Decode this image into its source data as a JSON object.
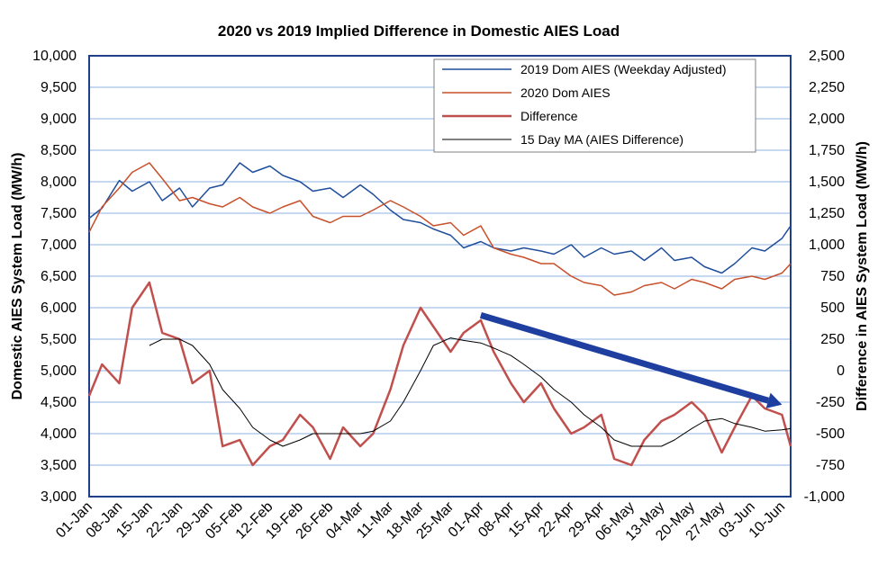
{
  "chart_data": {
    "type": "line",
    "title": "2020 vs 2019 Implied Difference in Domestic AIES Load",
    "ylabel": "Domestic AIES System Load (MW/h)",
    "y2label": "Difference in AIES System Load (MW/h)",
    "ylim": [
      3000,
      10000
    ],
    "y2lim": [
      -1000,
      2500
    ],
    "yticks": [
      "3,000",
      "3,500",
      "4,000",
      "4,500",
      "5,000",
      "5,500",
      "6,000",
      "6,500",
      "7,000",
      "7,500",
      "8,000",
      "8,500",
      "9,000",
      "9,500",
      "10,000"
    ],
    "y2ticks": [
      "-1,000",
      "-750",
      "-500",
      "-250",
      "0",
      "250",
      "500",
      "750",
      "1,000",
      "1,250",
      "1,500",
      "1,750",
      "2,000",
      "2,250",
      "2,500"
    ],
    "categories": [
      "01-Jan",
      "08-Jan",
      "15-Jan",
      "22-Jan",
      "29-Jan",
      "05-Feb",
      "12-Feb",
      "19-Feb",
      "26-Feb",
      "04-Mar",
      "11-Mar",
      "18-Mar",
      "25-Mar",
      "01-Apr",
      "08-Apr",
      "15-Apr",
      "22-Apr",
      "29-Apr",
      "06-May",
      "13-May",
      "20-May",
      "27-May",
      "03-Jun",
      "10-Jun"
    ],
    "grid": true,
    "legend_position": "top-right",
    "colors": {
      "dom2019": "#1f4e9c",
      "dom2020": "#c8502a",
      "difference": "#c0504d",
      "ma": "#000000",
      "arrow": "#1f3fa0",
      "grid": "#8db3e2",
      "frame": "#1f3f8a"
    },
    "series": [
      {
        "name": "2019 Dom AIES (Weekday Adjusted)",
        "axis": "left",
        "x": [
          "01-Jan",
          "04-Jan",
          "08-Jan",
          "11-Jan",
          "15-Jan",
          "18-Jan",
          "22-Jan",
          "25-Jan",
          "29-Jan",
          "01-Feb",
          "05-Feb",
          "08-Feb",
          "12-Feb",
          "15-Feb",
          "19-Feb",
          "22-Feb",
          "26-Feb",
          "29-Feb",
          "04-Mar",
          "07-Mar",
          "11-Mar",
          "14-Mar",
          "18-Mar",
          "21-Mar",
          "25-Mar",
          "28-Mar",
          "01-Apr",
          "04-Apr",
          "08-Apr",
          "11-Apr",
          "15-Apr",
          "18-Apr",
          "22-Apr",
          "25-Apr",
          "29-Apr",
          "02-May",
          "06-May",
          "09-May",
          "13-May",
          "16-May",
          "20-May",
          "23-May",
          "27-May",
          "30-May",
          "03-Jun",
          "06-Jun",
          "10-Jun",
          "12-Jun"
        ],
        "values": [
          7420,
          7580,
          8020,
          7850,
          8000,
          7700,
          7900,
          7600,
          7900,
          7950,
          8300,
          8150,
          8250,
          8100,
          8000,
          7850,
          7900,
          7750,
          7950,
          7800,
          7550,
          7400,
          7350,
          7250,
          7150,
          6950,
          7050,
          6950,
          6900,
          6950,
          6900,
          6850,
          7000,
          6800,
          6950,
          6850,
          6900,
          6750,
          6950,
          6750,
          6800,
          6650,
          6550,
          6700,
          6950,
          6900,
          7100,
          7300
        ]
      },
      {
        "name": "2020 Dom AIES",
        "axis": "left",
        "x": [
          "01-Jan",
          "04-Jan",
          "08-Jan",
          "11-Jan",
          "15-Jan",
          "18-Jan",
          "22-Jan",
          "25-Jan",
          "29-Jan",
          "01-Feb",
          "05-Feb",
          "08-Feb",
          "12-Feb",
          "15-Feb",
          "19-Feb",
          "22-Feb",
          "26-Feb",
          "29-Feb",
          "04-Mar",
          "07-Mar",
          "11-Mar",
          "14-Mar",
          "18-Mar",
          "21-Mar",
          "25-Mar",
          "28-Mar",
          "01-Apr",
          "04-Apr",
          "08-Apr",
          "11-Apr",
          "15-Apr",
          "18-Apr",
          "22-Apr",
          "25-Apr",
          "29-Apr",
          "02-May",
          "06-May",
          "09-May",
          "13-May",
          "16-May",
          "20-May",
          "23-May",
          "27-May",
          "30-May",
          "03-Jun",
          "06-Jun",
          "10-Jun",
          "12-Jun"
        ],
        "values": [
          7200,
          7600,
          7900,
          8150,
          8300,
          8050,
          7700,
          7750,
          7650,
          7600,
          7750,
          7600,
          7500,
          7600,
          7700,
          7450,
          7350,
          7450,
          7450,
          7550,
          7700,
          7600,
          7450,
          7300,
          7350,
          7150,
          7300,
          6950,
          6850,
          6800,
          6700,
          6700,
          6500,
          6400,
          6350,
          6200,
          6250,
          6350,
          6400,
          6300,
          6450,
          6400,
          6300,
          6450,
          6500,
          6450,
          6550,
          6700
        ]
      },
      {
        "name": "Difference",
        "axis": "right",
        "x": [
          "01-Jan",
          "04-Jan",
          "08-Jan",
          "11-Jan",
          "15-Jan",
          "18-Jan",
          "22-Jan",
          "25-Jan",
          "29-Jan",
          "01-Feb",
          "05-Feb",
          "08-Feb",
          "12-Feb",
          "15-Feb",
          "19-Feb",
          "22-Feb",
          "26-Feb",
          "29-Feb",
          "04-Mar",
          "07-Mar",
          "11-Mar",
          "14-Mar",
          "18-Mar",
          "21-Mar",
          "25-Mar",
          "28-Mar",
          "01-Apr",
          "04-Apr",
          "08-Apr",
          "11-Apr",
          "15-Apr",
          "18-Apr",
          "22-Apr",
          "25-Apr",
          "29-Apr",
          "02-May",
          "06-May",
          "09-May",
          "13-May",
          "16-May",
          "20-May",
          "23-May",
          "27-May",
          "30-May",
          "03-Jun",
          "06-Jun",
          "10-Jun",
          "12-Jun"
        ],
        "values": [
          -200,
          50,
          -100,
          500,
          700,
          300,
          250,
          -100,
          0,
          -600,
          -550,
          -750,
          -600,
          -550,
          -350,
          -450,
          -700,
          -450,
          -600,
          -500,
          -150,
          200,
          500,
          350,
          150,
          300,
          400,
          150,
          -100,
          -250,
          -100,
          -300,
          -500,
          -450,
          -350,
          -700,
          -750,
          -550,
          -400,
          -350,
          -250,
          -350,
          -650,
          -450,
          -200,
          -300,
          -350,
          -600
        ]
      },
      {
        "name": "15 Day MA (AIES Difference)",
        "axis": "right",
        "x": [
          "01-Jan",
          "04-Jan",
          "08-Jan",
          "11-Jan",
          "15-Jan",
          "18-Jan",
          "22-Jan",
          "25-Jan",
          "29-Jan",
          "01-Feb",
          "05-Feb",
          "08-Feb",
          "12-Feb",
          "15-Feb",
          "19-Feb",
          "22-Feb",
          "26-Feb",
          "29-Feb",
          "04-Mar",
          "07-Mar",
          "11-Mar",
          "14-Mar",
          "18-Mar",
          "21-Mar",
          "25-Mar",
          "28-Mar",
          "01-Apr",
          "04-Apr",
          "08-Apr",
          "11-Apr",
          "15-Apr",
          "18-Apr",
          "22-Apr",
          "25-Apr",
          "29-Apr",
          "02-May",
          "06-May",
          "09-May",
          "13-May",
          "16-May",
          "20-May",
          "23-May",
          "27-May",
          "30-May",
          "03-Jun",
          "06-Jun",
          "10-Jun",
          "12-Jun"
        ],
        "values": [
          null,
          null,
          null,
          null,
          200,
          250,
          250,
          200,
          50,
          -150,
          -300,
          -450,
          -550,
          -600,
          -550,
          -500,
          -500,
          -500,
          -500,
          -480,
          -400,
          -250,
          0,
          200,
          260,
          240,
          220,
          180,
          120,
          50,
          -50,
          -150,
          -250,
          -350,
          -450,
          -550,
          -600,
          -600,
          -600,
          -550,
          -460,
          -400,
          -380,
          -420,
          -450,
          -480,
          -470,
          -460
        ]
      }
    ],
    "annotations": [
      {
        "type": "arrow",
        "from": {
          "x": "01-Apr",
          "y_right": 440
        },
        "to": {
          "x": "10-Jun",
          "y_right": -270
        }
      }
    ]
  }
}
